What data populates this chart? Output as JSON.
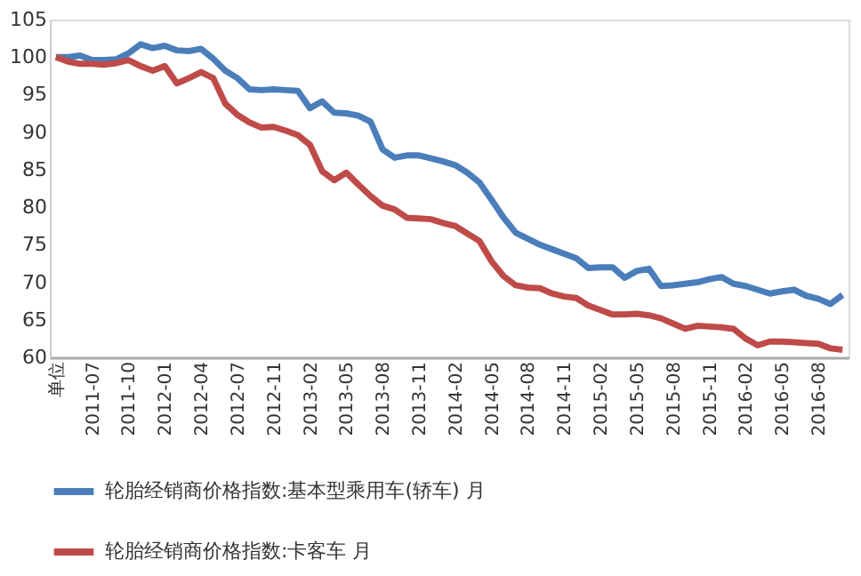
{
  "chart_data": {
    "type": "line",
    "categories": [
      "单位",
      null,
      null,
      "2011-07",
      null,
      null,
      "2011-10",
      null,
      null,
      "2012-01",
      null,
      null,
      "2012-04",
      null,
      null,
      "2012-07",
      null,
      null,
      "2012-11",
      null,
      null,
      "2013-02",
      null,
      null,
      "2013-05",
      null,
      null,
      "2013-08",
      null,
      null,
      "2013-11",
      null,
      null,
      "2014-02",
      null,
      null,
      "2014-05",
      null,
      null,
      "2014-08",
      null,
      null,
      "2014-11",
      null,
      null,
      "2015-02",
      null,
      null,
      "2015-05",
      null,
      null,
      "2015-08",
      null,
      null,
      "2015-11",
      null,
      null,
      "2016-02",
      null,
      null,
      "2016-05",
      null,
      null,
      "2016-08",
      null,
      null
    ],
    "series": [
      {
        "name": "轮胎经销商价格指数:基本型乘用车(轿车) 月",
        "color": "#4a7ebb",
        "values": [
          100,
          100,
          100.2,
          99.6,
          99.6,
          99.7,
          100.5,
          101.7,
          101.2,
          101.5,
          100.9,
          100.8,
          101.1,
          99.8,
          98.2,
          97.2,
          95.7,
          95.6,
          95.7,
          95.6,
          95.5,
          93.2,
          94.1,
          92.6,
          92.5,
          92.2,
          91.4,
          87.7,
          86.6,
          86.9,
          86.9,
          86.5,
          86.1,
          85.6,
          84.6,
          83.3,
          81,
          78.6,
          76.6,
          75.8,
          75,
          74.4,
          73.8,
          73.2,
          71.9,
          72,
          72,
          70.6,
          71.5,
          71.8,
          69.5,
          69.6,
          69.8,
          70,
          70.4,
          70.7,
          69.8,
          69.5,
          69,
          68.5,
          68.8,
          69,
          68.2,
          67.8,
          67.1,
          68.3
        ]
      },
      {
        "name": "轮胎经销商价格指数:卡客车 月",
        "color": "#be4b48",
        "values": [
          100,
          99.4,
          99.1,
          99.1,
          99,
          99.2,
          99.6,
          98.8,
          98.2,
          98.8,
          96.5,
          97.2,
          98,
          97.2,
          93.8,
          92.3,
          91.3,
          90.6,
          90.7,
          90.2,
          89.6,
          88.3,
          84.8,
          83.6,
          84.6,
          83,
          81.5,
          80.2,
          79.7,
          78.6,
          78.5,
          78.4,
          77.9,
          77.5,
          76.5,
          75.5,
          72.8,
          70.8,
          69.6,
          69.3,
          69.2,
          68.5,
          68.1,
          67.9,
          66.9,
          66.3,
          65.7,
          65.7,
          65.8,
          65.6,
          65.2,
          64.5,
          63.8,
          64.2,
          64.1,
          64,
          63.8,
          62.5,
          61.6,
          62.1,
          62.1,
          62,
          61.9,
          61.8,
          61.2,
          61
        ]
      }
    ],
    "ylim": [
      60,
      105
    ],
    "yticks": [
      60,
      65,
      70,
      75,
      80,
      85,
      90,
      95,
      100,
      105
    ],
    "grid": false,
    "legend": "bottom",
    "line_style": "solid",
    "marker": "none"
  }
}
